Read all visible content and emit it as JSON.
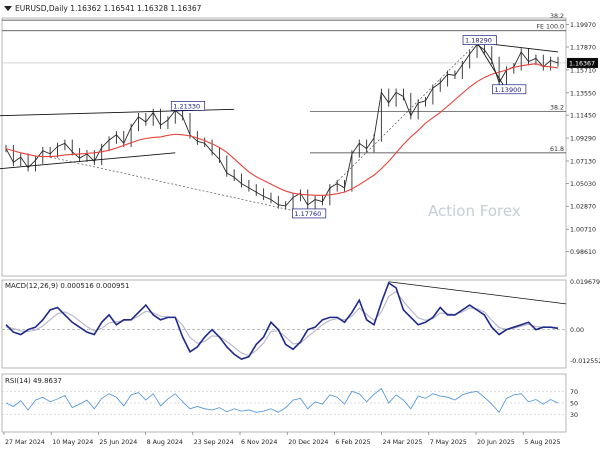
{
  "header": {
    "symbol_line": "EURUSD,Daily  1.16362 1.16541 1.16328 1.16367"
  },
  "watermark": "Action Forex",
  "colors": {
    "price": "#2a2a2a",
    "ma": "#e8413a",
    "trendline": "#111111",
    "dashed": "#555555",
    "macd": "#1f2a8a",
    "signal": "#b6b6c8",
    "rsi": "#4a90d9",
    "grid": "#c9c9c9",
    "label_box": "#1a237e",
    "watermark": "#c5cdd6",
    "current_box": "#0a0a0a"
  },
  "chart_data": [
    {
      "type": "line",
      "title": "EURUSD,Daily",
      "xlabel": "",
      "ylabel": "",
      "ylim": [
        0.963,
        1.206
      ],
      "x_ticks": [
        "27 Mar 2024",
        "10 May 2024",
        "25 Jun 2024",
        "8 Aug 2024",
        "23 Sep 2024",
        "6 Nov 2024",
        "20 Dec 2024",
        "6 Feb 2025",
        "24 Mar 2025",
        "7 May 2025",
        "20 Jun 2025",
        "5 Aug 2025"
      ],
      "y_ticks": [
        "1.19970",
        "1.17870",
        "1.15710",
        "1.13550",
        "1.11450",
        "1.09290",
        "1.07130",
        "1.05030",
        "1.02870",
        "1.00710",
        "0.98610"
      ],
      "current_price": "1.16367",
      "annotations": [
        "1.21330",
        "1.17760",
        "1.18290",
        "1.13900"
      ],
      "fib_levels": [
        {
          "label": "38.2",
          "value": 1.204
        },
        {
          "label": "FE 100.0",
          "value": 1.194
        },
        {
          "label": "38.2",
          "value": 1.118
        },
        {
          "label": "61.8",
          "value": 1.079
        }
      ],
      "series": [
        {
          "values": [
            1.083,
            1.07,
            1.075,
            1.065,
            1.072,
            1.081,
            1.078,
            1.085,
            1.088,
            1.08,
            1.074,
            1.078,
            1.071,
            1.084,
            1.091,
            1.096,
            1.088,
            1.103,
            1.113,
            1.108,
            1.117,
            1.105,
            1.11,
            1.119,
            1.113,
            1.096,
            1.09,
            1.088,
            1.08,
            1.073,
            1.06,
            1.056,
            1.05,
            1.046,
            1.042,
            1.038,
            1.035,
            1.03,
            1.029,
            1.037,
            1.041,
            1.03,
            1.035,
            1.033,
            1.046,
            1.05,
            1.046,
            1.078,
            1.088,
            1.083,
            1.093,
            1.136,
            1.126,
            1.136,
            1.132,
            1.114,
            1.126,
            1.128,
            1.14,
            1.145,
            1.153,
            1.152,
            1.162,
            1.172,
            1.181,
            1.176,
            1.166,
            1.145,
            1.157,
            1.16,
            1.174,
            1.165,
            1.168,
            1.16,
            1.166,
            1.1637
          ]
        },
        {
          "values": [
            1.083,
            1.081,
            1.079,
            1.0775,
            1.076,
            1.0755,
            1.0755,
            1.076,
            1.077,
            1.0775,
            1.078,
            1.0785,
            1.079,
            1.08,
            1.0815,
            1.0835,
            1.086,
            1.0885,
            1.091,
            1.0925,
            1.0935,
            1.094,
            1.0955,
            1.0965,
            1.096,
            1.095,
            1.093,
            1.0905,
            1.0875,
            1.084,
            1.0795,
            1.0735,
            1.067,
            1.061,
            1.0565,
            1.053,
            1.0495,
            1.046,
            1.043,
            1.041,
            1.04,
            1.0395,
            1.039,
            1.039,
            1.0395,
            1.0405,
            1.042,
            1.045,
            1.049,
            1.0535,
            1.058,
            1.064,
            1.071,
            1.079,
            1.087,
            1.094,
            1.1,
            1.107,
            1.112,
            1.117,
            1.123,
            1.129,
            1.135,
            1.141,
            1.146,
            1.15,
            1.153,
            1.155,
            1.157,
            1.1595,
            1.161,
            1.162,
            1.163,
            1.1605,
            1.16,
            1.159
          ]
        }
      ]
    },
    {
      "type": "line",
      "title": "MACD(12,26,9) 0.000516 0.000951",
      "ylim": [
        -0.0156,
        0.0202
      ],
      "y_ticks": [
        "0.019679",
        "0.00",
        "-0.012552"
      ],
      "series": [
        {
          "values": [
            0.002,
            -0.001,
            -0.002,
            0.0,
            0.001,
            0.004,
            0.008,
            0.009,
            0.006,
            0.003,
            0.001,
            -0.001,
            -0.002,
            0.003,
            0.006,
            0.002,
            0.004,
            0.004,
            0.007,
            0.01,
            0.006,
            0.004,
            0.005,
            0.005,
            -0.003,
            -0.009,
            -0.007,
            -0.003,
            0.0,
            -0.003,
            -0.007,
            -0.01,
            -0.012,
            -0.011,
            -0.006,
            -0.003,
            0.003,
            0.0,
            -0.006,
            -0.008,
            -0.005,
            0.0,
            0.001,
            0.004,
            0.005,
            0.005,
            0.003,
            0.007,
            0.012,
            0.004,
            0.002,
            0.011,
            0.019,
            0.017,
            0.008,
            0.005,
            0.002,
            0.003,
            0.005,
            0.009,
            0.006,
            0.006,
            0.008,
            0.01,
            0.008,
            0.006,
            0.001,
            -0.002,
            0.0,
            0.001,
            0.002,
            0.003,
            0.0,
            0.001,
            0.001,
            0.0005
          ]
        },
        {
          "values": [
            0.001,
            0.0005,
            -0.0005,
            -0.0008,
            -0.0002,
            0.0015,
            0.004,
            0.0065,
            0.0072,
            0.0058,
            0.0035,
            0.0012,
            -0.0005,
            0.0005,
            0.0028,
            0.0032,
            0.0036,
            0.004,
            0.0055,
            0.0075,
            0.0068,
            0.0055,
            0.0052,
            0.005,
            0.0018,
            -0.0032,
            -0.0055,
            -0.0048,
            -0.0025,
            -0.0028,
            -0.0048,
            -0.0072,
            -0.0095,
            -0.0105,
            -0.0085,
            -0.0055,
            -0.0008,
            -0.0004,
            -0.003,
            -0.0058,
            -0.0055,
            -0.0028,
            -0.0005,
            0.002,
            0.0038,
            0.0045,
            0.004,
            0.0055,
            0.0088,
            0.0062,
            0.0038,
            0.0072,
            0.0135,
            0.0155,
            0.0115,
            0.008,
            0.0048,
            0.0038,
            0.0045,
            0.0068,
            0.0065,
            0.0062,
            0.0072,
            0.0088,
            0.0085,
            0.0072,
            0.0038,
            0.0008,
            0.0002,
            0.0006,
            0.0014,
            0.0022,
            0.0012,
            0.0011,
            0.001,
            0.00095
          ]
        }
      ]
    },
    {
      "type": "line",
      "title": "RSI(14) 49.8637",
      "ylim": [
        0,
        100
      ],
      "y_ticks": [
        "70",
        "50",
        "30"
      ],
      "series": [
        {
          "values": [
            50,
            44,
            54,
            38,
            55,
            60,
            52,
            57,
            63,
            42,
            48,
            55,
            40,
            58,
            66,
            60,
            45,
            64,
            68,
            55,
            66,
            45,
            57,
            66,
            52,
            40,
            44,
            40,
            38,
            42,
            35,
            40,
            36,
            38,
            34,
            36,
            40,
            34,
            42,
            55,
            58,
            40,
            52,
            48,
            64,
            60,
            48,
            70,
            66,
            52,
            65,
            75,
            50,
            64,
            55,
            40,
            62,
            58,
            66,
            62,
            60,
            55,
            64,
            68,
            70,
            60,
            48,
            34,
            58,
            64,
            66,
            52,
            56,
            48,
            56,
            50
          ]
        }
      ]
    }
  ]
}
